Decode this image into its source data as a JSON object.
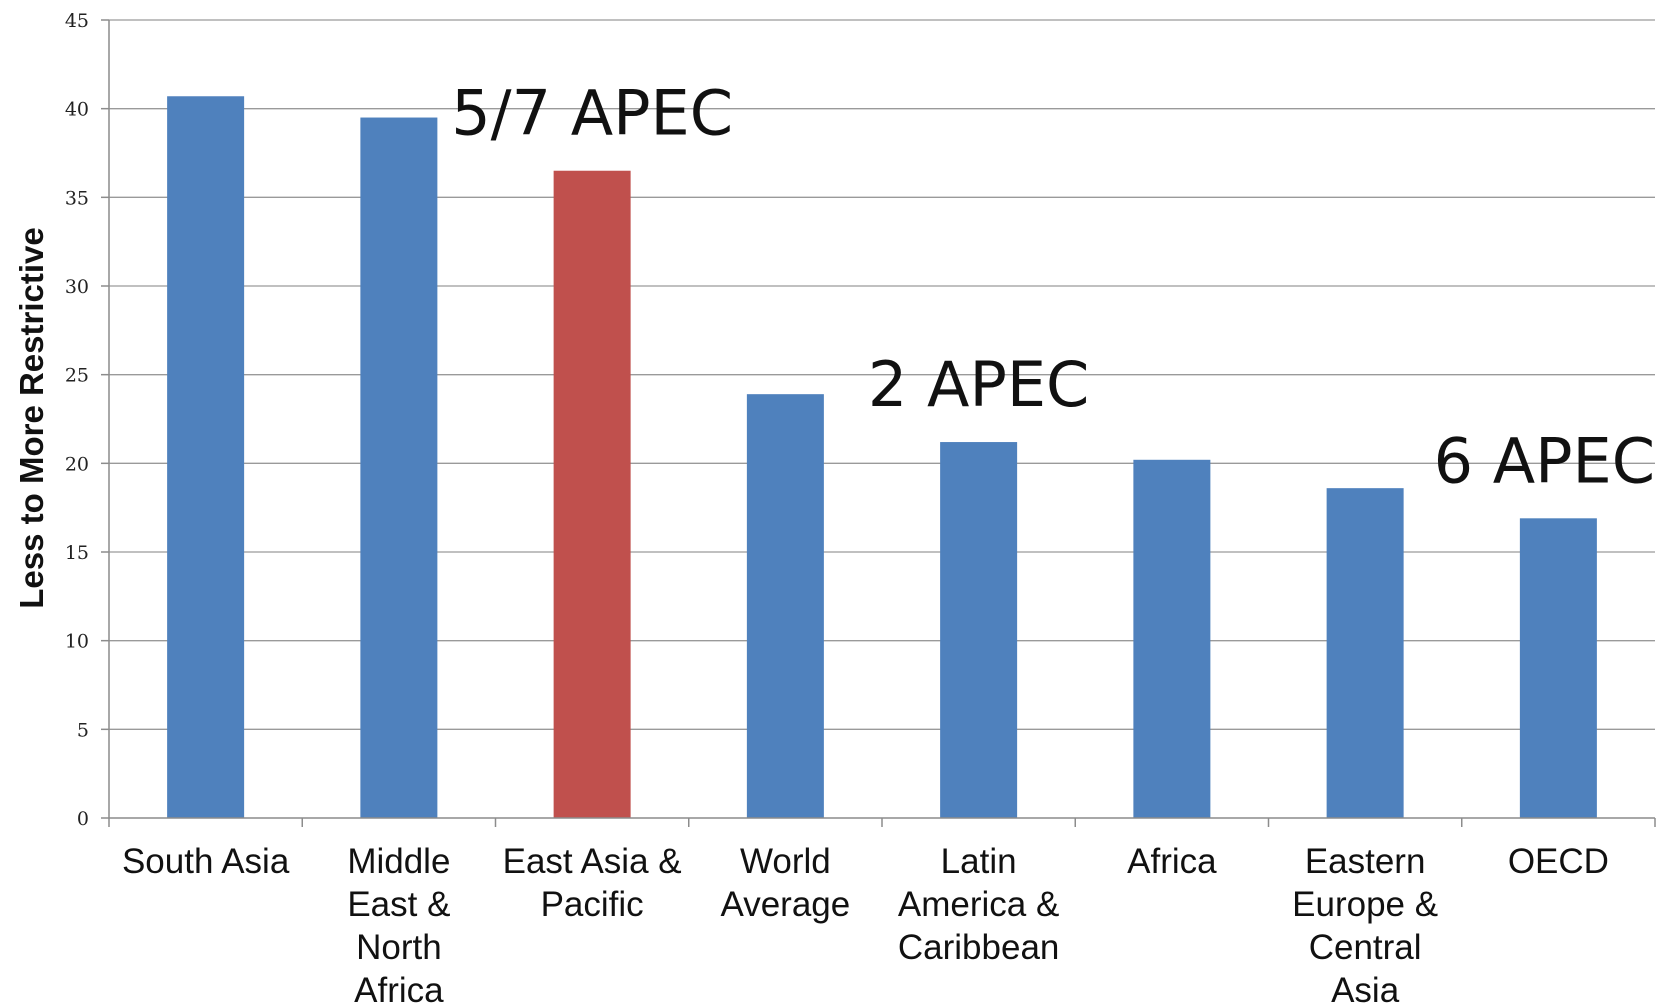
{
  "chart_data": {
    "type": "bar",
    "title": "",
    "xlabel": "",
    "ylabel": "Less to More Restrictive",
    "ylim": [
      0,
      45
    ],
    "yticks": [
      0,
      5,
      10,
      15,
      20,
      25,
      30,
      35,
      40,
      45
    ],
    "grid": true,
    "legend": "none",
    "categories": [
      [
        "South Asia"
      ],
      [
        "Middle",
        "East &",
        "North",
        "Africa"
      ],
      [
        "East Asia &",
        "Pacific"
      ],
      [
        "World",
        "Average"
      ],
      [
        "Latin",
        "America &",
        "Caribbean"
      ],
      [
        "Africa"
      ],
      [
        "Eastern",
        "Europe &",
        "Central",
        "Asia"
      ],
      [
        "OECD"
      ]
    ],
    "values": [
      40.7,
      39.5,
      36.5,
      23.9,
      21.2,
      20.2,
      18.6,
      16.9
    ],
    "colors": {
      "default": "#4f81bd",
      "highlight": "#c0504d",
      "grid": "#9a9a9a",
      "axis": "#8c8c8c"
    },
    "highlight_index": 2,
    "annotations": [
      {
        "text": "5/7 APEC",
        "category_index": 2
      },
      {
        "text": "2 APEC",
        "category_index": 4
      },
      {
        "text": "6 APEC",
        "category_index": 7
      }
    ]
  }
}
